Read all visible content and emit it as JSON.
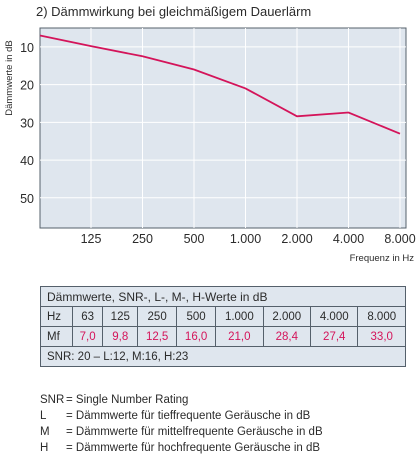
{
  "chart_data": {
    "type": "line",
    "title": "2) Dämmwirkung bei gleichmäßigem Dauerlärm",
    "ylabel": "Dämmwerte in dB",
    "xlabel": "Frequenz in Hz",
    "x": [
      63,
      125,
      250,
      500,
      1000,
      2000,
      4000,
      8000
    ],
    "x_tick_labels": [
      "125",
      "250",
      "500",
      "1.000",
      "2.000",
      "4.000",
      "8.000"
    ],
    "y_ticks": [
      10,
      20,
      30,
      40,
      50
    ],
    "ylim": [
      5,
      58
    ],
    "y_inverted": true,
    "grid": true,
    "series": [
      {
        "values": [
          7.0,
          9.8,
          12.5,
          16.0,
          21.0,
          28.4,
          27.4,
          33.0
        ],
        "color": "#d4145a"
      }
    ]
  },
  "table": {
    "header": "Dämmwerte, SNR-, L-, M-, H-Werte in dB",
    "hz_label": "Hz",
    "hz_values": [
      "63",
      "125",
      "250",
      "500",
      "1.000",
      "2.000",
      "4.000",
      "8.000"
    ],
    "mf_label": "Mf",
    "mf_values": [
      "7,0",
      "9,8",
      "12,5",
      "16,0",
      "21,0",
      "28,4",
      "27,4",
      "33,0"
    ],
    "snr_line": "SNR: 20  –  L:12, M:16, H:23"
  },
  "legend": [
    {
      "abbr": "SNR",
      "text": "= Single Number Rating"
    },
    {
      "abbr": "L",
      "text": "= Dämmwerte für tieffrequente Geräusche in dB"
    },
    {
      "abbr": "M",
      "text": "= Dämmwerte für mittelfrequente Geräusche in dB"
    },
    {
      "abbr": "H",
      "text": "= Dämmwerte für hochfrequente Geräusche in dB"
    }
  ]
}
